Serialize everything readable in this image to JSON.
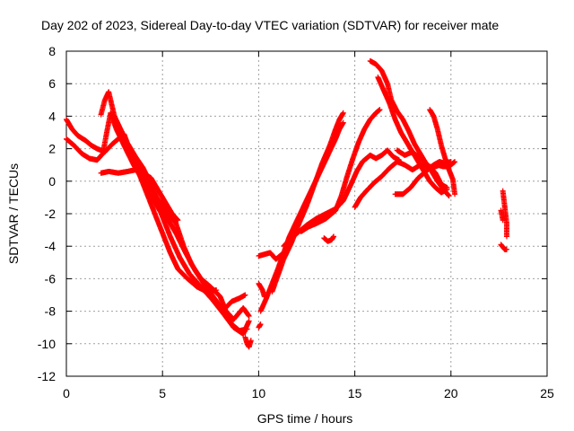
{
  "chart_data": {
    "type": "scatter",
    "title": "Day 202 of 2023, Sidereal Day-to-day VTEC variation (SDTVAR) for receiver mate",
    "xlabel": "GPS time / hours",
    "ylabel": "SDTVAR / TECUs",
    "xlim": [
      0,
      25
    ],
    "ylim": [
      -12,
      8
    ],
    "xticks": [
      0,
      5,
      10,
      15,
      20,
      25
    ],
    "yticks": [
      -12,
      -10,
      -8,
      -6,
      -4,
      -2,
      0,
      2,
      4,
      6,
      8
    ],
    "grid": true,
    "legend": "none",
    "marker": "plus",
    "series_color": "#ff0000",
    "tracks": [
      {
        "points": [
          [
            0.0,
            3.8
          ],
          [
            0.3,
            3.2
          ],
          [
            0.6,
            2.8
          ],
          [
            1.0,
            2.5
          ],
          [
            1.3,
            2.2
          ],
          [
            1.6,
            2.0
          ],
          [
            2.0,
            1.8
          ],
          [
            2.4,
            2.3
          ],
          [
            2.8,
            2.7
          ],
          [
            3.2,
            2.3
          ],
          [
            3.6,
            1.5
          ],
          [
            4.0,
            0.8
          ],
          [
            4.4,
            -0.2
          ],
          [
            4.8,
            -1.3
          ],
          [
            5.2,
            -2.2
          ],
          [
            5.7,
            -3.2
          ],
          [
            6.2,
            -4.4
          ],
          [
            6.7,
            -5.5
          ],
          [
            7.2,
            -6.4
          ],
          [
            7.7,
            -7.2
          ],
          [
            8.2,
            -8.0
          ],
          [
            8.6,
            -8.8
          ],
          [
            9.0,
            -9.2
          ],
          [
            9.4,
            -9.1
          ]
        ]
      },
      {
        "points": [
          [
            0.0,
            2.6
          ],
          [
            0.4,
            2.2
          ],
          [
            0.8,
            1.7
          ],
          [
            1.2,
            1.4
          ],
          [
            1.6,
            1.3
          ],
          [
            1.9,
            1.7
          ],
          [
            2.1,
            3.0
          ],
          [
            2.3,
            4.2
          ],
          [
            2.6,
            3.2
          ],
          [
            3.0,
            2.2
          ],
          [
            3.5,
            1.0
          ],
          [
            4.0,
            0.0
          ],
          [
            4.4,
            -0.9
          ],
          [
            4.9,
            -1.9
          ],
          [
            5.4,
            -3.4
          ],
          [
            5.9,
            -4.7
          ],
          [
            6.4,
            -5.7
          ],
          [
            7.0,
            -6.5
          ],
          [
            7.6,
            -7.3
          ],
          [
            8.2,
            -8.2
          ],
          [
            8.7,
            -9.0
          ],
          [
            9.2,
            -9.4
          ],
          [
            9.5,
            -8.6
          ]
        ]
      },
      {
        "points": [
          [
            1.8,
            4.1
          ],
          [
            2.0,
            5.0
          ],
          [
            2.2,
            5.5
          ],
          [
            2.5,
            4.0
          ],
          [
            2.9,
            3.0
          ],
          [
            3.3,
            2.0
          ],
          [
            3.7,
            1.0
          ],
          [
            4.2,
            0.0
          ],
          [
            4.7,
            -1.0
          ],
          [
            5.2,
            -1.8
          ],
          [
            5.7,
            -2.6
          ],
          [
            6.1,
            -4.0
          ],
          [
            6.5,
            -5.1
          ],
          [
            7.0,
            -6.0
          ],
          [
            7.5,
            -6.5
          ],
          [
            8.0,
            -7.1
          ],
          [
            8.3,
            -8.0
          ],
          [
            8.7,
            -8.5
          ],
          [
            9.2,
            -7.8
          ],
          [
            9.5,
            -8.3
          ]
        ]
      },
      {
        "points": [
          [
            1.8,
            0.5
          ],
          [
            2.2,
            0.6
          ],
          [
            2.7,
            0.5
          ],
          [
            3.2,
            0.6
          ],
          [
            3.6,
            0.7
          ],
          [
            4.0,
            0.5
          ],
          [
            4.4,
            0.2
          ],
          [
            4.8,
            -0.6
          ],
          [
            5.2,
            -1.4
          ],
          [
            5.5,
            -2.0
          ],
          [
            5.8,
            -2.4
          ]
        ]
      },
      {
        "points": [
          [
            3.0,
            2.9
          ],
          [
            3.4,
            1.6
          ],
          [
            3.8,
            0.4
          ],
          [
            4.2,
            -0.8
          ],
          [
            4.6,
            -2.0
          ],
          [
            5.0,
            -3.2
          ],
          [
            5.4,
            -4.4
          ],
          [
            5.8,
            -5.4
          ],
          [
            6.3,
            -6.0
          ],
          [
            6.8,
            -6.5
          ],
          [
            7.3,
            -6.8
          ],
          [
            7.8,
            -6.7
          ]
        ]
      },
      {
        "points": [
          [
            8.2,
            -7.9
          ],
          [
            8.6,
            -7.4
          ],
          [
            9.0,
            -7.2
          ],
          [
            9.3,
            -7.0
          ]
        ]
      },
      {
        "points": [
          [
            9.3,
            -9.6
          ],
          [
            9.4,
            -10.0
          ],
          [
            9.5,
            -10.2
          ],
          [
            9.6,
            -9.8
          ]
        ]
      },
      {
        "points": [
          [
            10.0,
            -4.6
          ],
          [
            10.3,
            -4.5
          ],
          [
            10.6,
            -4.4
          ],
          [
            10.9,
            -4.8
          ],
          [
            11.2,
            -4.5
          ]
        ]
      },
      {
        "points": [
          [
            10.0,
            -6.3
          ],
          [
            10.2,
            -6.7
          ],
          [
            10.3,
            -7.1
          ]
        ]
      },
      {
        "points": [
          [
            10.1,
            -8.0
          ],
          [
            10.4,
            -7.2
          ],
          [
            10.7,
            -6.3
          ],
          [
            11.0,
            -5.4
          ],
          [
            11.3,
            -4.4
          ],
          [
            11.6,
            -3.4
          ],
          [
            12.0,
            -2.4
          ],
          [
            12.4,
            -1.4
          ],
          [
            12.8,
            -0.4
          ],
          [
            13.2,
            0.6
          ],
          [
            13.6,
            1.6
          ],
          [
            14.0,
            2.6
          ],
          [
            14.2,
            3.2
          ],
          [
            14.4,
            3.6
          ]
        ]
      },
      {
        "points": [
          [
            10.7,
            -6.8
          ],
          [
            11.0,
            -5.8
          ],
          [
            11.3,
            -4.8
          ],
          [
            11.7,
            -3.8
          ],
          [
            12.1,
            -2.6
          ],
          [
            12.5,
            -1.5
          ],
          [
            12.9,
            -0.2
          ],
          [
            13.3,
            1.1
          ],
          [
            13.7,
            2.2
          ],
          [
            14.0,
            3.2
          ],
          [
            14.2,
            3.8
          ],
          [
            14.4,
            4.2
          ]
        ]
      },
      {
        "points": [
          [
            10.0,
            -9.0
          ],
          [
            10.1,
            -8.8
          ]
        ]
      },
      {
        "points": [
          [
            11.3,
            -4.0
          ],
          [
            11.7,
            -3.5
          ],
          [
            12.1,
            -3.1
          ],
          [
            12.5,
            -2.7
          ],
          [
            13.0,
            -2.3
          ],
          [
            13.5,
            -2.0
          ],
          [
            14.0,
            -1.7
          ],
          [
            14.4,
            -1.2
          ],
          [
            14.8,
            -0.2
          ],
          [
            15.1,
            0.6
          ],
          [
            15.4,
            1.2
          ],
          [
            15.8,
            1.6
          ],
          [
            16.1,
            1.4
          ],
          [
            16.4,
            1.6
          ],
          [
            16.7,
            1.9
          ],
          [
            17.0,
            1.5
          ],
          [
            17.3,
            1.3
          ]
        ]
      },
      {
        "points": [
          [
            12.2,
            -3.1
          ],
          [
            12.6,
            -2.8
          ],
          [
            13.0,
            -2.6
          ],
          [
            13.5,
            -2.3
          ],
          [
            14.0,
            -1.8
          ],
          [
            14.3,
            -0.9
          ],
          [
            14.6,
            0.3
          ],
          [
            14.9,
            1.4
          ],
          [
            15.2,
            2.4
          ],
          [
            15.5,
            3.2
          ],
          [
            15.8,
            3.8
          ],
          [
            16.1,
            4.2
          ],
          [
            16.3,
            4.4
          ]
        ]
      },
      {
        "points": [
          [
            13.4,
            -3.5
          ],
          [
            13.6,
            -3.7
          ],
          [
            13.8,
            -3.6
          ],
          [
            13.9,
            -3.4
          ]
        ]
      },
      {
        "points": [
          [
            15.0,
            -1.6
          ],
          [
            15.3,
            -1.0
          ],
          [
            15.6,
            -0.6
          ],
          [
            16.0,
            -0.1
          ],
          [
            16.4,
            0.3
          ],
          [
            16.8,
            0.8
          ],
          [
            17.2,
            1.2
          ],
          [
            17.6,
            1.0
          ],
          [
            18.0,
            0.7
          ],
          [
            18.4,
            1.0
          ],
          [
            18.8,
            0.9
          ],
          [
            19.2,
            0.9
          ],
          [
            19.6,
            1.1
          ],
          [
            20.0,
            1.2
          ]
        ]
      },
      {
        "points": [
          [
            15.8,
            7.4
          ],
          [
            16.1,
            7.2
          ],
          [
            16.4,
            6.8
          ],
          [
            16.7,
            6.0
          ],
          [
            16.9,
            5.0
          ],
          [
            17.2,
            4.3
          ],
          [
            17.5,
            3.8
          ],
          [
            17.8,
            3.1
          ],
          [
            18.1,
            2.3
          ],
          [
            18.4,
            1.7
          ],
          [
            18.7,
            1.1
          ],
          [
            19.0,
            0.6
          ],
          [
            19.3,
            0.0
          ],
          [
            19.6,
            -0.5
          ],
          [
            19.9,
            -0.9
          ]
        ]
      },
      {
        "points": [
          [
            16.2,
            6.4
          ],
          [
            16.5,
            5.6
          ],
          [
            16.8,
            4.8
          ],
          [
            17.1,
            3.8
          ],
          [
            17.4,
            3.0
          ],
          [
            17.7,
            2.4
          ],
          [
            18.0,
            1.8
          ],
          [
            18.3,
            1.2
          ],
          [
            18.6,
            0.6
          ],
          [
            18.9,
            0.0
          ],
          [
            19.2,
            -0.4
          ],
          [
            19.5,
            -0.7
          ],
          [
            19.8,
            -0.5
          ]
        ]
      },
      {
        "points": [
          [
            17.2,
            1.9
          ],
          [
            17.6,
            1.6
          ],
          [
            18.0,
            1.8
          ],
          [
            18.4,
            1.4
          ],
          [
            18.8,
            1.0
          ],
          [
            19.2,
            0.5
          ],
          [
            19.5,
            -0.2
          ],
          [
            19.8,
            -0.4
          ]
        ]
      },
      {
        "points": [
          [
            17.1,
            -0.8
          ],
          [
            17.5,
            -0.8
          ],
          [
            17.9,
            -0.4
          ],
          [
            18.3,
            0.2
          ],
          [
            18.7,
            0.6
          ],
          [
            19.1,
            1.0
          ],
          [
            19.4,
            1.2
          ],
          [
            19.7,
            1.1
          ]
        ]
      },
      {
        "points": [
          [
            18.9,
            4.4
          ],
          [
            19.1,
            4.0
          ],
          [
            19.3,
            3.2
          ],
          [
            19.5,
            2.2
          ],
          [
            19.7,
            1.4
          ],
          [
            19.9,
            0.7
          ],
          [
            20.1,
            0.1
          ],
          [
            20.2,
            -0.8
          ]
        ]
      },
      {
        "points": [
          [
            19.3,
            1.0
          ],
          [
            19.6,
            0.9
          ],
          [
            19.9,
            0.9
          ],
          [
            20.2,
            1.2
          ]
        ]
      },
      {
        "points": [
          [
            22.7,
            -0.6
          ],
          [
            22.8,
            -1.6
          ],
          [
            22.9,
            -2.6
          ],
          [
            22.9,
            -3.4
          ]
        ]
      },
      {
        "points": [
          [
            22.6,
            -1.8
          ],
          [
            22.7,
            -2.4
          ]
        ]
      },
      {
        "points": [
          [
            22.6,
            -3.9
          ],
          [
            22.8,
            -4.2
          ],
          [
            22.9,
            -4.2
          ]
        ]
      }
    ]
  }
}
